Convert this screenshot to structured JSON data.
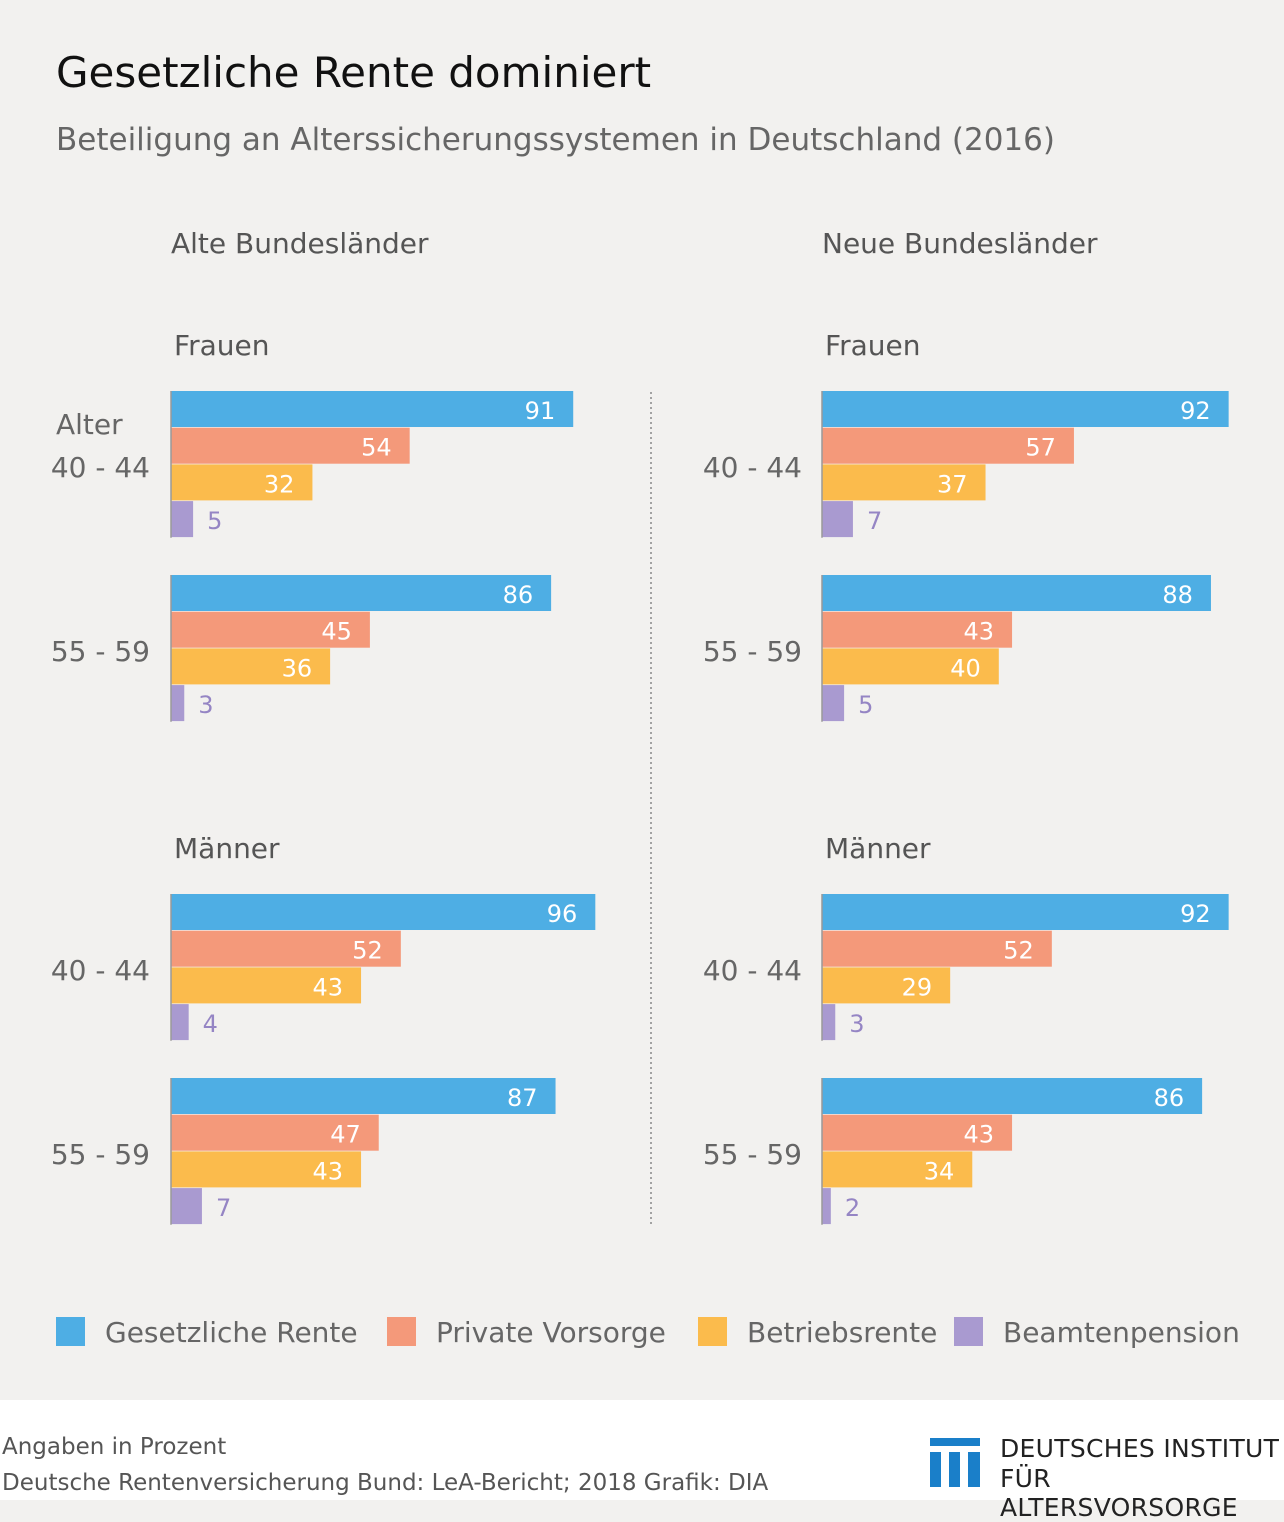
{
  "title": "Gesetzliche Rente dominiert",
  "subtitle": "Beteiligung an Alterssicherungssystemen in Deutschland (2016)",
  "footer": {
    "note": "Angaben in Prozent",
    "source": "Deutsche Rentenversicherung Bund: LeA-Bericht; 2018  Grafik: DIA",
    "logo_line1": "DEUTSCHES INSTITUT",
    "logo_line2": "FÜR ALTERSVORSORGE"
  },
  "chart_data": {
    "type": "bar",
    "orientation": "horizontal",
    "unit": "Prozent",
    "age_label": "Alter",
    "legend_position": "bottom",
    "series": [
      {
        "name": "Gesetzliche Rente",
        "color": "#4eaee4"
      },
      {
        "name": "Private Vorsorge",
        "color": "#f4997a"
      },
      {
        "name": "Betriebsrente",
        "color": "#fbbb4c"
      },
      {
        "name": "Beamtenpension",
        "color": "#a99ad0"
      }
    ],
    "panels": [
      {
        "region": "Alte Bundesländer",
        "groups": [
          {
            "gender": "Frauen",
            "ages": [
              {
                "age": "40 - 44",
                "values": [
                  91,
                  54,
                  32,
                  5
                ]
              },
              {
                "age": "55 - 59",
                "values": [
                  86,
                  45,
                  36,
                  3
                ]
              }
            ]
          },
          {
            "gender": "Männer",
            "ages": [
              {
                "age": "40 - 44",
                "values": [
                  96,
                  52,
                  43,
                  4
                ]
              },
              {
                "age": "55 - 59",
                "values": [
                  87,
                  47,
                  43,
                  7
                ]
              }
            ]
          }
        ]
      },
      {
        "region": "Neue Bundesländer",
        "groups": [
          {
            "gender": "Frauen",
            "ages": [
              {
                "age": "40 - 44",
                "values": [
                  92,
                  57,
                  37,
                  7
                ]
              },
              {
                "age": "55 - 59",
                "values": [
                  88,
                  43,
                  40,
                  5
                ]
              }
            ]
          },
          {
            "gender": "Männer",
            "ages": [
              {
                "age": "40 - 44",
                "values": [
                  92,
                  52,
                  29,
                  3
                ]
              },
              {
                "age": "55 - 59",
                "values": [
                  86,
                  43,
                  34,
                  2
                ]
              }
            ]
          }
        ]
      }
    ],
    "xlim": [
      0,
      100
    ],
    "grid": false
  }
}
